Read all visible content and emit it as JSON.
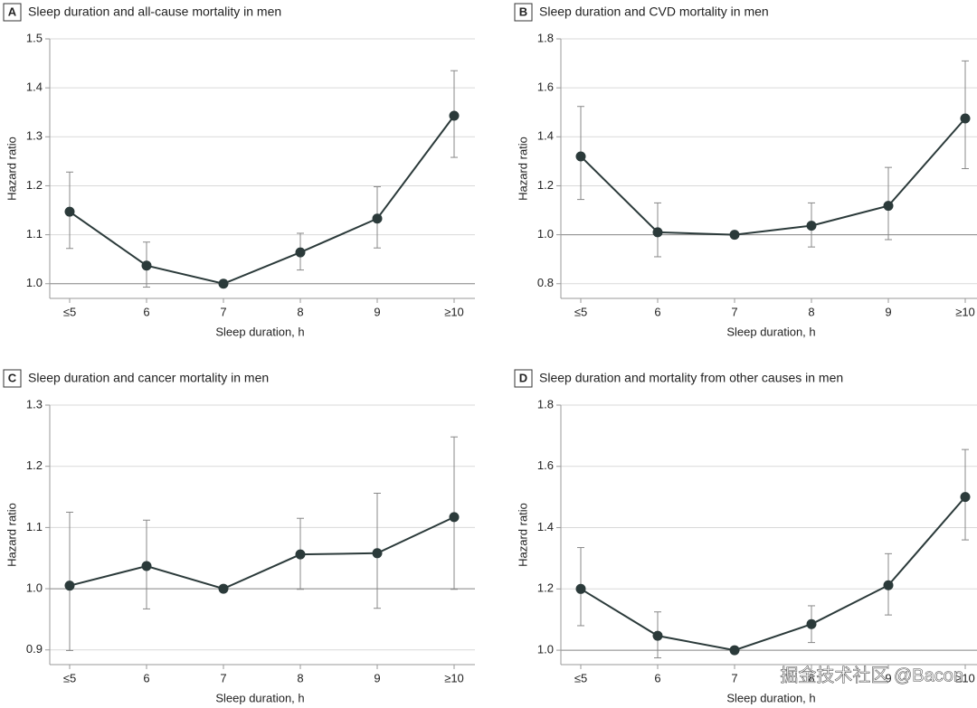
{
  "chart_data": [
    {
      "type": "line",
      "panel": "A",
      "title": "Sleep duration and all-cause mortality in men",
      "x_label": "Sleep duration, h",
      "y_label": "Hazard ratio",
      "categories": [
        "≤5",
        "6",
        "7",
        "8",
        "9",
        "≥10"
      ],
      "series": [
        {
          "color": "#2b3a3a",
          "values": [
            1.147,
            1.037,
            1.0,
            1.064,
            1.133,
            1.343
          ]
        }
      ],
      "error_low": [
        1.072,
        0.993,
        null,
        1.028,
        1.073,
        1.258
      ],
      "error_high": [
        1.228,
        1.085,
        null,
        1.103,
        1.198,
        1.435
      ],
      "ylim": [
        0.97,
        1.5
      ],
      "yticks": [
        {
          "value": 1,
          "label": "1.0"
        },
        1.1,
        1.2,
        1.3,
        1.4,
        1.5
      ],
      "grid": true,
      "reference_line": 1
    },
    {
      "type": "line",
      "panel": "B",
      "title": "Sleep duration and CVD mortality in men",
      "x_label": "Sleep duration, h",
      "y_label": "Hazard ratio",
      "categories": [
        "≤5",
        "6",
        "7",
        "8",
        "9",
        "≥10"
      ],
      "series": [
        {
          "color": "#2b3a3a",
          "values": [
            1.32,
            1.01,
            1.0,
            1.037,
            1.118,
            1.475
          ]
        }
      ],
      "error_low": [
        1.144,
        0.91,
        null,
        0.95,
        0.98,
        1.27
      ],
      "error_high": [
        1.524,
        1.13,
        null,
        1.13,
        1.275,
        1.71
      ],
      "ylim": [
        0.74,
        1.8
      ],
      "yticks": [
        0.8,
        {
          "value": 1,
          "label": "1.0"
        },
        1.2,
        1.4,
        1.6,
        1.8
      ],
      "grid": true,
      "reference_line": 1
    },
    {
      "type": "line",
      "panel": "C",
      "title": "Sleep duration and cancer mortality in men",
      "x_label": "Sleep duration, h",
      "y_label": "Hazard ratio",
      "categories": [
        "≤5",
        "6",
        "7",
        "8",
        "9",
        "≥10"
      ],
      "series": [
        {
          "color": "#2b3a3a",
          "values": [
            1.005,
            1.037,
            1.0,
            1.056,
            1.058,
            1.117
          ]
        }
      ],
      "error_low": [
        0.899,
        0.967,
        null,
        0.999,
        0.968,
        0.999
      ],
      "error_high": [
        1.125,
        1.112,
        null,
        1.115,
        1.156,
        1.248
      ],
      "ylim": [
        0.876,
        1.3
      ],
      "yticks": [
        0.9,
        {
          "value": 1,
          "label": "1.0"
        },
        1.1,
        1.2,
        1.3
      ],
      "grid": true,
      "reference_line": 1
    },
    {
      "type": "line",
      "panel": "D",
      "title": "Sleep duration and mortality from other causes in men",
      "x_label": "Sleep duration, h",
      "y_label": "Hazard ratio",
      "categories": [
        "≤5",
        "6",
        "7",
        "8",
        "9",
        "≥10"
      ],
      "series": [
        {
          "color": "#2b3a3a",
          "values": [
            1.2,
            1.047,
            1.0,
            1.085,
            1.212,
            1.5
          ]
        }
      ],
      "error_low": [
        1.08,
        0.975,
        null,
        1.025,
        1.115,
        1.36
      ],
      "error_high": [
        1.335,
        1.125,
        null,
        1.145,
        1.315,
        1.655
      ],
      "ylim": [
        0.953,
        1.8
      ],
      "yticks": [
        {
          "value": 1,
          "label": "1.0"
        },
        1.2,
        1.4,
        1.6,
        1.8
      ],
      "grid": true,
      "reference_line": 1
    }
  ],
  "watermark": "掘金技术社区 @Bacon"
}
